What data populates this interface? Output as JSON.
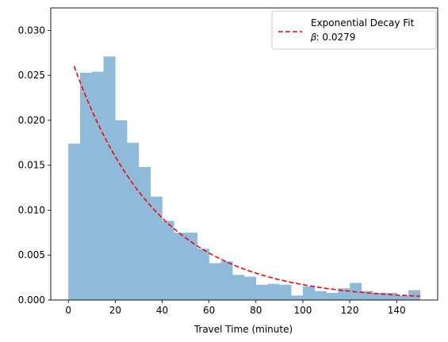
{
  "chart_data": {
    "type": "bar",
    "subtype": "histogram",
    "xlabel": "Travel Time (minute)",
    "ylabel": "",
    "xlim": [
      -7.5,
      157.5
    ],
    "ylim": [
      0,
      0.0325
    ],
    "xticks": [
      "0",
      "20",
      "40",
      "60",
      "80",
      "100",
      "120",
      "140"
    ],
    "yticks": [
      "0.000",
      "0.005",
      "0.010",
      "0.015",
      "0.020",
      "0.025",
      "0.030"
    ],
    "bin_width": 5,
    "bins": [
      {
        "x0": 0,
        "value": 0.0174
      },
      {
        "x0": 5,
        "value": 0.0253
      },
      {
        "x0": 10,
        "value": 0.0254
      },
      {
        "x0": 15,
        "value": 0.0271
      },
      {
        "x0": 20,
        "value": 0.02
      },
      {
        "x0": 25,
        "value": 0.0175
      },
      {
        "x0": 30,
        "value": 0.0148
      },
      {
        "x0": 35,
        "value": 0.0115
      },
      {
        "x0": 40,
        "value": 0.0088
      },
      {
        "x0": 45,
        "value": 0.0075
      },
      {
        "x0": 50,
        "value": 0.0075
      },
      {
        "x0": 55,
        "value": 0.0057
      },
      {
        "x0": 60,
        "value": 0.0041
      },
      {
        "x0": 65,
        "value": 0.0043
      },
      {
        "x0": 70,
        "value": 0.0028
      },
      {
        "x0": 75,
        "value": 0.0026
      },
      {
        "x0": 80,
        "value": 0.0017
      },
      {
        "x0": 85,
        "value": 0.0018
      },
      {
        "x0": 90,
        "value": 0.0017
      },
      {
        "x0": 95,
        "value": 0.0005
      },
      {
        "x0": 100,
        "value": 0.0015
      },
      {
        "x0": 105,
        "value": 0.001
      },
      {
        "x0": 110,
        "value": 0.0008
      },
      {
        "x0": 115,
        "value": 0.0013
      },
      {
        "x0": 120,
        "value": 0.0019
      },
      {
        "x0": 125,
        "value": 0.001
      },
      {
        "x0": 130,
        "value": 0.0008
      },
      {
        "x0": 135,
        "value": 0.0008
      },
      {
        "x0": 140,
        "value": 0.0005
      },
      {
        "x0": 145,
        "value": 0.0011
      }
    ],
    "fit": {
      "name": "Exponential Decay Fit",
      "beta_label": "𝛽: 0.0279",
      "beta": 0.0279,
      "x_range": [
        2.5,
        150
      ],
      "color": "#ff0000",
      "style": "dashed"
    },
    "bar_color": "#8fbbda",
    "legend_position": "top-right",
    "grid": false
  }
}
